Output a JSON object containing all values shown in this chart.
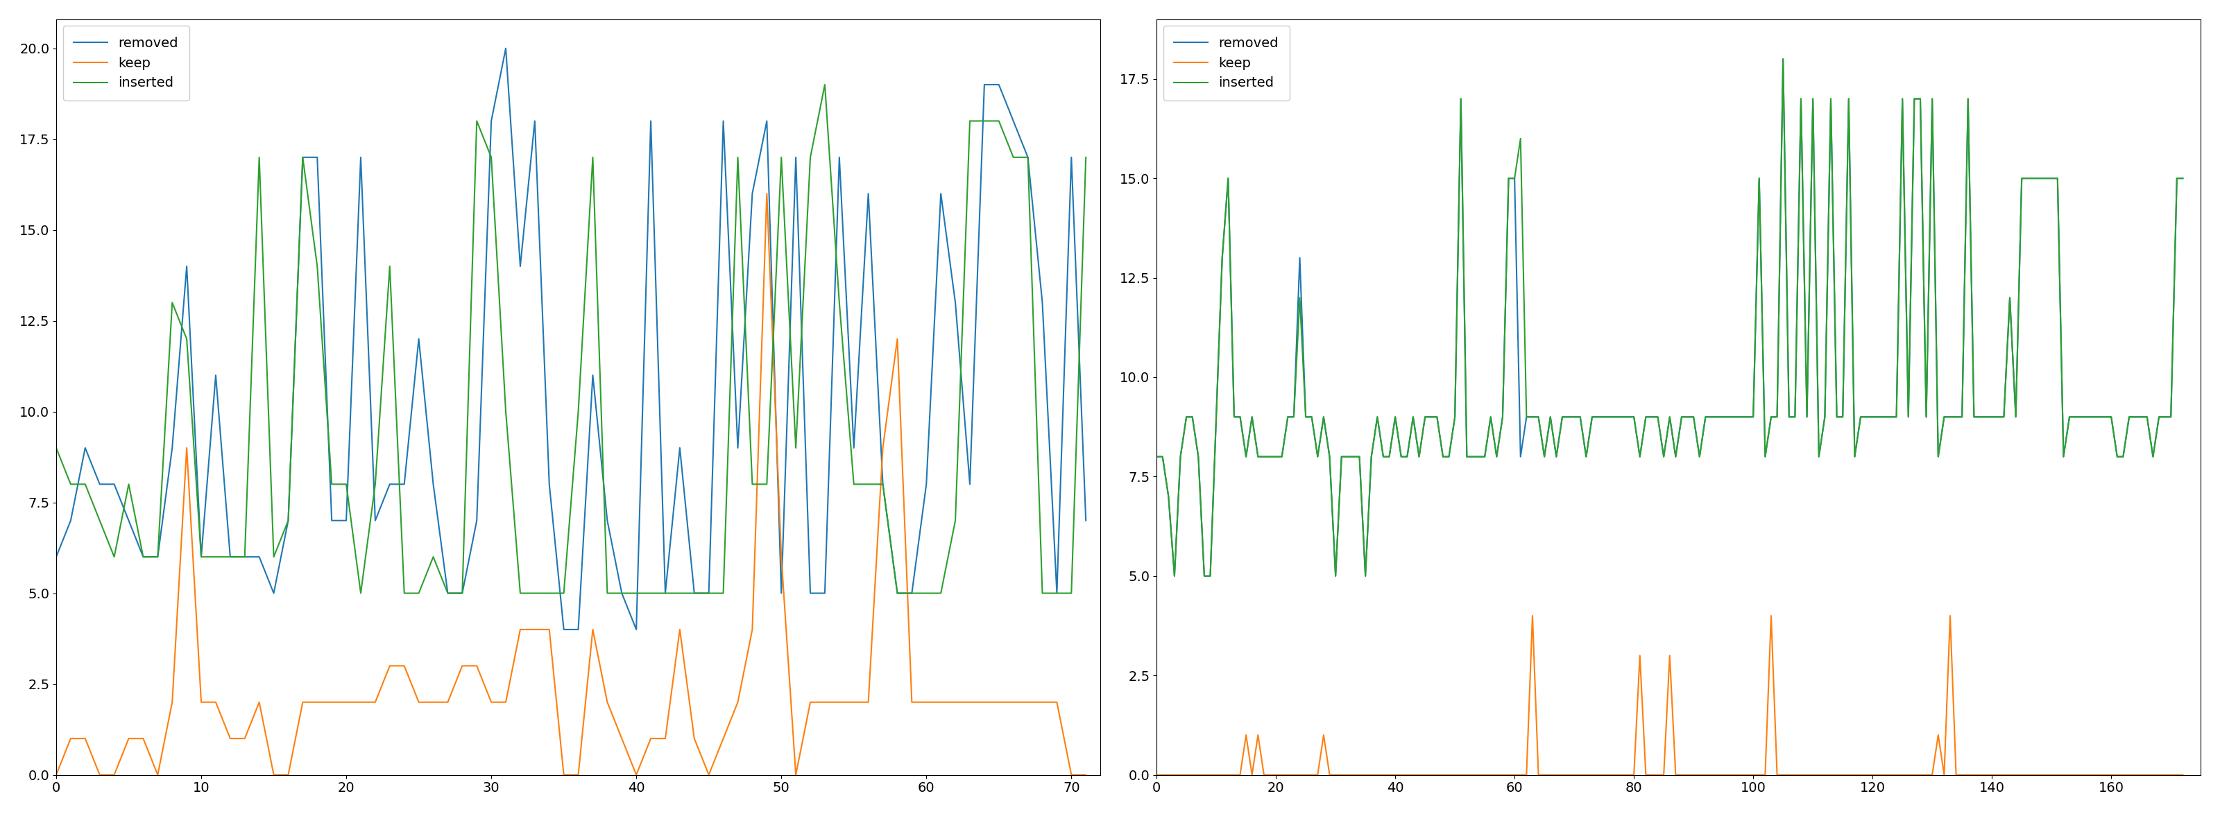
{
  "left": {
    "removed": [
      6,
      7,
      9,
      8,
      8,
      7,
      6,
      6,
      9,
      14,
      6,
      11,
      6,
      6,
      6,
      5,
      7,
      17,
      17,
      7,
      7,
      17,
      7,
      8,
      8,
      12,
      8,
      5,
      5,
      7,
      18,
      20,
      14,
      18,
      8,
      4,
      4,
      11,
      7,
      5,
      4,
      18,
      5,
      9,
      5,
      5,
      18,
      9,
      16,
      18,
      5,
      17,
      5,
      5,
      17,
      9,
      16,
      8,
      5,
      5,
      8,
      16,
      13,
      8,
      19,
      19,
      18,
      17,
      13,
      5,
      17,
      7
    ],
    "keep": [
      0,
      1,
      1,
      0,
      0,
      1,
      1,
      0,
      2,
      9,
      2,
      2,
      1,
      1,
      2,
      0,
      0,
      2,
      2,
      2,
      2,
      2,
      2,
      3,
      3,
      2,
      2,
      2,
      3,
      3,
      2,
      2,
      4,
      4,
      4,
      0,
      0,
      4,
      2,
      1,
      0,
      1,
      1,
      4,
      1,
      0,
      1,
      2,
      4,
      16,
      6,
      0,
      2,
      2,
      2,
      2,
      2,
      9,
      12,
      2,
      2,
      2,
      2,
      2,
      2,
      2,
      2,
      2,
      2,
      2,
      0,
      0
    ],
    "inserted": [
      9,
      8,
      8,
      7,
      6,
      8,
      6,
      6,
      13,
      12,
      6,
      6,
      6,
      6,
      17,
      6,
      7,
      17,
      14,
      8,
      8,
      5,
      8,
      14,
      5,
      5,
      6,
      5,
      5,
      18,
      17,
      10,
      5,
      5,
      5,
      5,
      10,
      17,
      5,
      5,
      5,
      5,
      5,
      5,
      5,
      5,
      5,
      17,
      8,
      8,
      17,
      9,
      17,
      19,
      13,
      8,
      8,
      8,
      5,
      5,
      5,
      5,
      7,
      18,
      18,
      18,
      17,
      17,
      5,
      5,
      5,
      17
    ],
    "xlim": [
      0,
      72
    ],
    "ylim": [
      0,
      20.8
    ],
    "yticks": [
      0.0,
      2.5,
      5.0,
      7.5,
      10.0,
      12.5,
      15.0,
      17.5,
      20.0
    ]
  },
  "right": {
    "removed": [
      8,
      8,
      7,
      5,
      8,
      9,
      9,
      8,
      5,
      5,
      9,
      13,
      15,
      9,
      9,
      8,
      9,
      8,
      8,
      8,
      8,
      8,
      9,
      9,
      13,
      9,
      9,
      8,
      9,
      8,
      5,
      8,
      8,
      8,
      8,
      5,
      8,
      9,
      8,
      8,
      9,
      8,
      8,
      9,
      8,
      9,
      9,
      9,
      8,
      8,
      9,
      17,
      8,
      8,
      8,
      8,
      9,
      8,
      9,
      15,
      15,
      8,
      9,
      9,
      9,
      8,
      9,
      8,
      9,
      9,
      9,
      9,
      8,
      9,
      9,
      9,
      9,
      9,
      9,
      9,
      9,
      8,
      9,
      9,
      9,
      8,
      9,
      8,
      9,
      9,
      9,
      8,
      9,
      9,
      9,
      9,
      9,
      9,
      9,
      9,
      9,
      15,
      8,
      9,
      9,
      18,
      9,
      9,
      17,
      9,
      17,
      8,
      9,
      17,
      9,
      9,
      17,
      8,
      9,
      9,
      9,
      9,
      9,
      9,
      9,
      17,
      9,
      17,
      17,
      9,
      17,
      8,
      9,
      9,
      9,
      9,
      17,
      9,
      9,
      9,
      9,
      9,
      9,
      12,
      9,
      15,
      15,
      15,
      15,
      15,
      15,
      15,
      8,
      9,
      9,
      9,
      9,
      9,
      9,
      9,
      9,
      8,
      8,
      9,
      9,
      9,
      9,
      8,
      9,
      9,
      9,
      15,
      15
    ],
    "keep": [
      0,
      0,
      0,
      0,
      0,
      0,
      0,
      0,
      0,
      0,
      0,
      0,
      0,
      0,
      0,
      1,
      0,
      1,
      0,
      0,
      0,
      0,
      0,
      0,
      0,
      0,
      0,
      0,
      1,
      0,
      0,
      0,
      0,
      0,
      0,
      0,
      0,
      0,
      0,
      0,
      0,
      0,
      0,
      0,
      0,
      0,
      0,
      0,
      0,
      0,
      0,
      0,
      0,
      0,
      0,
      0,
      0,
      0,
      0,
      0,
      0,
      0,
      0,
      4,
      0,
      0,
      0,
      0,
      0,
      0,
      0,
      0,
      0,
      0,
      0,
      0,
      0,
      0,
      0,
      0,
      0,
      3,
      0,
      0,
      0,
      0,
      3,
      0,
      0,
      0,
      0,
      0,
      0,
      0,
      0,
      0,
      0,
      0,
      0,
      0,
      0,
      0,
      0,
      4,
      0,
      0,
      0,
      0,
      0,
      0,
      0,
      0,
      0,
      0,
      0,
      0,
      0,
      0,
      0,
      0,
      0,
      0,
      0,
      0,
      0,
      0,
      0,
      0,
      0,
      0,
      0,
      1,
      0,
      4,
      0,
      0,
      0,
      0,
      0,
      0,
      0,
      0,
      0,
      0,
      0,
      0,
      0,
      0,
      0,
      0,
      0,
      0,
      0,
      0,
      0,
      0,
      0,
      0,
      0,
      0,
      0,
      0,
      0,
      0,
      0,
      0,
      0,
      0,
      0,
      0,
      0,
      0,
      0
    ],
    "inserted": [
      8,
      8,
      7,
      5,
      8,
      9,
      9,
      8,
      5,
      5,
      9,
      13,
      15,
      9,
      9,
      8,
      9,
      8,
      8,
      8,
      8,
      8,
      9,
      9,
      12,
      9,
      9,
      8,
      9,
      8,
      5,
      8,
      8,
      8,
      8,
      5,
      8,
      9,
      8,
      8,
      9,
      8,
      8,
      9,
      8,
      9,
      9,
      9,
      8,
      8,
      9,
      17,
      8,
      8,
      8,
      8,
      9,
      8,
      9,
      15,
      15,
      16,
      9,
      9,
      9,
      8,
      9,
      8,
      9,
      9,
      9,
      9,
      8,
      9,
      9,
      9,
      9,
      9,
      9,
      9,
      9,
      8,
      9,
      9,
      9,
      8,
      9,
      8,
      9,
      9,
      9,
      8,
      9,
      9,
      9,
      9,
      9,
      9,
      9,
      9,
      9,
      15,
      8,
      9,
      9,
      18,
      9,
      9,
      17,
      9,
      17,
      8,
      9,
      17,
      9,
      9,
      17,
      8,
      9,
      9,
      9,
      9,
      9,
      9,
      9,
      17,
      9,
      17,
      17,
      9,
      17,
      8,
      9,
      9,
      9,
      9,
      17,
      9,
      9,
      9,
      9,
      9,
      9,
      12,
      9,
      15,
      15,
      15,
      15,
      15,
      15,
      15,
      8,
      9,
      9,
      9,
      9,
      9,
      9,
      9,
      9,
      8,
      8,
      9,
      9,
      9,
      9,
      8,
      9,
      9,
      9,
      15,
      15
    ],
    "xlim": [
      0,
      175
    ],
    "ylim": [
      0,
      19.0
    ],
    "yticks": [
      0.0,
      2.5,
      5.0,
      7.5,
      10.0,
      12.5,
      15.0,
      17.5
    ]
  },
  "colors": {
    "removed": "#1f77b4",
    "keep": "#ff7f0e",
    "inserted": "#2ca02c"
  },
  "figure_bgcolor": "#ffffff",
  "linewidth": 1.5,
  "legend_fontsize": 14,
  "tick_labelsize": 14
}
